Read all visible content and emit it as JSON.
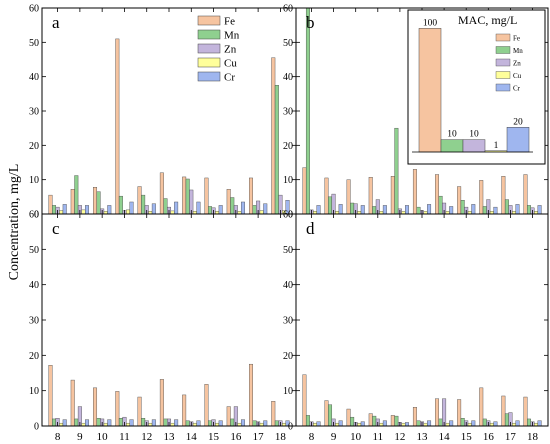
{
  "figure": {
    "ylabel": "Concentration, mg/L",
    "legend_metals": [
      "Fe",
      "Mn",
      "Zn",
      "Cu",
      "Cr"
    ],
    "colors": {
      "Fe": "#f6c4a0",
      "Mn": "#8fd08f",
      "Zn": "#c3b5dc",
      "Cu": "#ffff9a",
      "Cr": "#9fb6ef",
      "stroke": "#444444"
    }
  },
  "chart_data": [
    {
      "panel": "a",
      "type": "bar",
      "categories": [
        "8",
        "9",
        "10",
        "11",
        "12",
        "13",
        "14",
        "15",
        "16",
        "17",
        "18"
      ],
      "ylim": [
        0,
        60
      ],
      "yticks": [
        0,
        10,
        20,
        30,
        40,
        50,
        60
      ],
      "xticks_shown": false,
      "legend": "top-right",
      "series": [
        {
          "name": "Fe",
          "values": [
            5.5,
            7.2,
            7.8,
            51,
            8,
            12,
            10.8,
            10.5,
            7.2,
            10.5,
            45.5
          ]
        },
        {
          "name": "Mn",
          "values": [
            2.5,
            11.2,
            6.5,
            5.2,
            5.5,
            4.5,
            10.2,
            2.2,
            4.8,
            2.5,
            37.5
          ]
        },
        {
          "name": "Zn",
          "values": [
            2,
            2.5,
            1.5,
            1,
            2.5,
            2,
            7,
            1.8,
            2.5,
            3.8,
            5.5
          ]
        },
        {
          "name": "Cu",
          "values": [
            1,
            1.2,
            0.8,
            1.2,
            0.8,
            0.9,
            0.8,
            0.8,
            0.8,
            1,
            1
          ]
        },
        {
          "name": "Cr",
          "values": [
            2.8,
            2.5,
            2.5,
            3.5,
            3,
            3.5,
            3.5,
            2.5,
            3.5,
            3,
            4
          ]
        }
      ]
    },
    {
      "panel": "b",
      "type": "bar",
      "categories": [
        "8",
        "9",
        "10",
        "11",
        "12",
        "13",
        "14",
        "15",
        "16",
        "17",
        "18"
      ],
      "ylim": [
        0,
        60
      ],
      "yticks": [
        0,
        10,
        20,
        30,
        40,
        50,
        60
      ],
      "xticks_shown": false,
      "series": [
        {
          "name": "Fe",
          "values": [
            13.5,
            10.5,
            10,
            10.7,
            11,
            13,
            11.5,
            8,
            9.8,
            11,
            11.5
          ]
        },
        {
          "name": "Mn",
          "values": [
            60,
            5,
            3.2,
            2.2,
            25,
            2,
            5.2,
            4,
            2.2,
            4.2,
            2.5
          ]
        },
        {
          "name": "Zn",
          "values": [
            1.2,
            5.8,
            3,
            4.2,
            1.5,
            1,
            3.2,
            2,
            4.2,
            2.5,
            1.8
          ]
        },
        {
          "name": "Cu",
          "values": [
            0.8,
            0.8,
            0.8,
            0.8,
            0.8,
            0.8,
            0.8,
            0.8,
            0.8,
            0.8,
            0.8
          ]
        },
        {
          "name": "Cr",
          "values": [
            2.5,
            2.8,
            2.5,
            2.5,
            2.5,
            2.8,
            2.2,
            2.8,
            2,
            2.8,
            2.5
          ]
        }
      ]
    },
    {
      "panel": "c",
      "type": "bar",
      "categories": [
        "8",
        "9",
        "10",
        "11",
        "12",
        "13",
        "14",
        "15",
        "16",
        "17",
        "18"
      ],
      "ylim": [
        0,
        60
      ],
      "yticks": [
        0,
        10,
        20,
        30,
        40,
        50,
        60
      ],
      "xticks_shown": true,
      "series": [
        {
          "name": "Fe",
          "values": [
            17.2,
            13,
            10.8,
            9.8,
            8.2,
            13.2,
            8.8,
            11.8,
            5.5,
            17.5,
            7
          ]
        },
        {
          "name": "Mn",
          "values": [
            2,
            2,
            2.2,
            2.2,
            2.2,
            2,
            1.5,
            1.5,
            2,
            1.5,
            1.5
          ]
        },
        {
          "name": "Zn",
          "values": [
            2.2,
            5.5,
            2,
            2.5,
            1.5,
            2,
            1.2,
            1.8,
            5.5,
            1.2,
            1.5
          ]
        },
        {
          "name": "Cu",
          "values": [
            0.8,
            0.8,
            0.8,
            0.8,
            0.8,
            0.8,
            0.8,
            0.8,
            0.8,
            0.8,
            0.8
          ]
        },
        {
          "name": "Cr",
          "values": [
            1.8,
            1.8,
            1.8,
            1.8,
            1.8,
            1.8,
            1.5,
            1.5,
            1.8,
            1.5,
            1.5
          ]
        }
      ]
    },
    {
      "panel": "d",
      "type": "bar",
      "categories": [
        "8",
        "9",
        "10",
        "11",
        "12",
        "13",
        "14",
        "15",
        "16",
        "17",
        "18"
      ],
      "ylim": [
        0,
        60
      ],
      "yticks": [
        0,
        10,
        20,
        30,
        40,
        50,
        60
      ],
      "xticks_shown": true,
      "series": [
        {
          "name": "Fe",
          "values": [
            14.5,
            7.2,
            4.8,
            3.5,
            3,
            5.3,
            7.7,
            7.5,
            10.8,
            8.5,
            8.2
          ]
        },
        {
          "name": "Mn",
          "values": [
            3,
            6,
            2.5,
            2.8,
            2.8,
            1.5,
            2,
            2.2,
            2,
            3.5,
            2
          ]
        },
        {
          "name": "Zn",
          "values": [
            1.2,
            2,
            1,
            2,
            1,
            1.2,
            7.7,
            1.5,
            1.5,
            3.8,
            1.2
          ]
        },
        {
          "name": "Cu",
          "values": [
            0.8,
            0.8,
            0.8,
            0.8,
            0.8,
            0.8,
            0.8,
            0.8,
            0.8,
            0.8,
            0.8
          ]
        },
        {
          "name": "Cr",
          "values": [
            1.2,
            1.5,
            1.2,
            1.5,
            1,
            1.5,
            1.5,
            1.5,
            1.2,
            1.5,
            1.5
          ]
        }
      ]
    }
  ],
  "inset": {
    "title": "MAC, mg/L",
    "type": "bar",
    "categories": [
      "Fe",
      "Mn",
      "Zn",
      "Cu",
      "Cr"
    ],
    "values": [
      100,
      10,
      10,
      1,
      20
    ],
    "ymax": 110
  }
}
